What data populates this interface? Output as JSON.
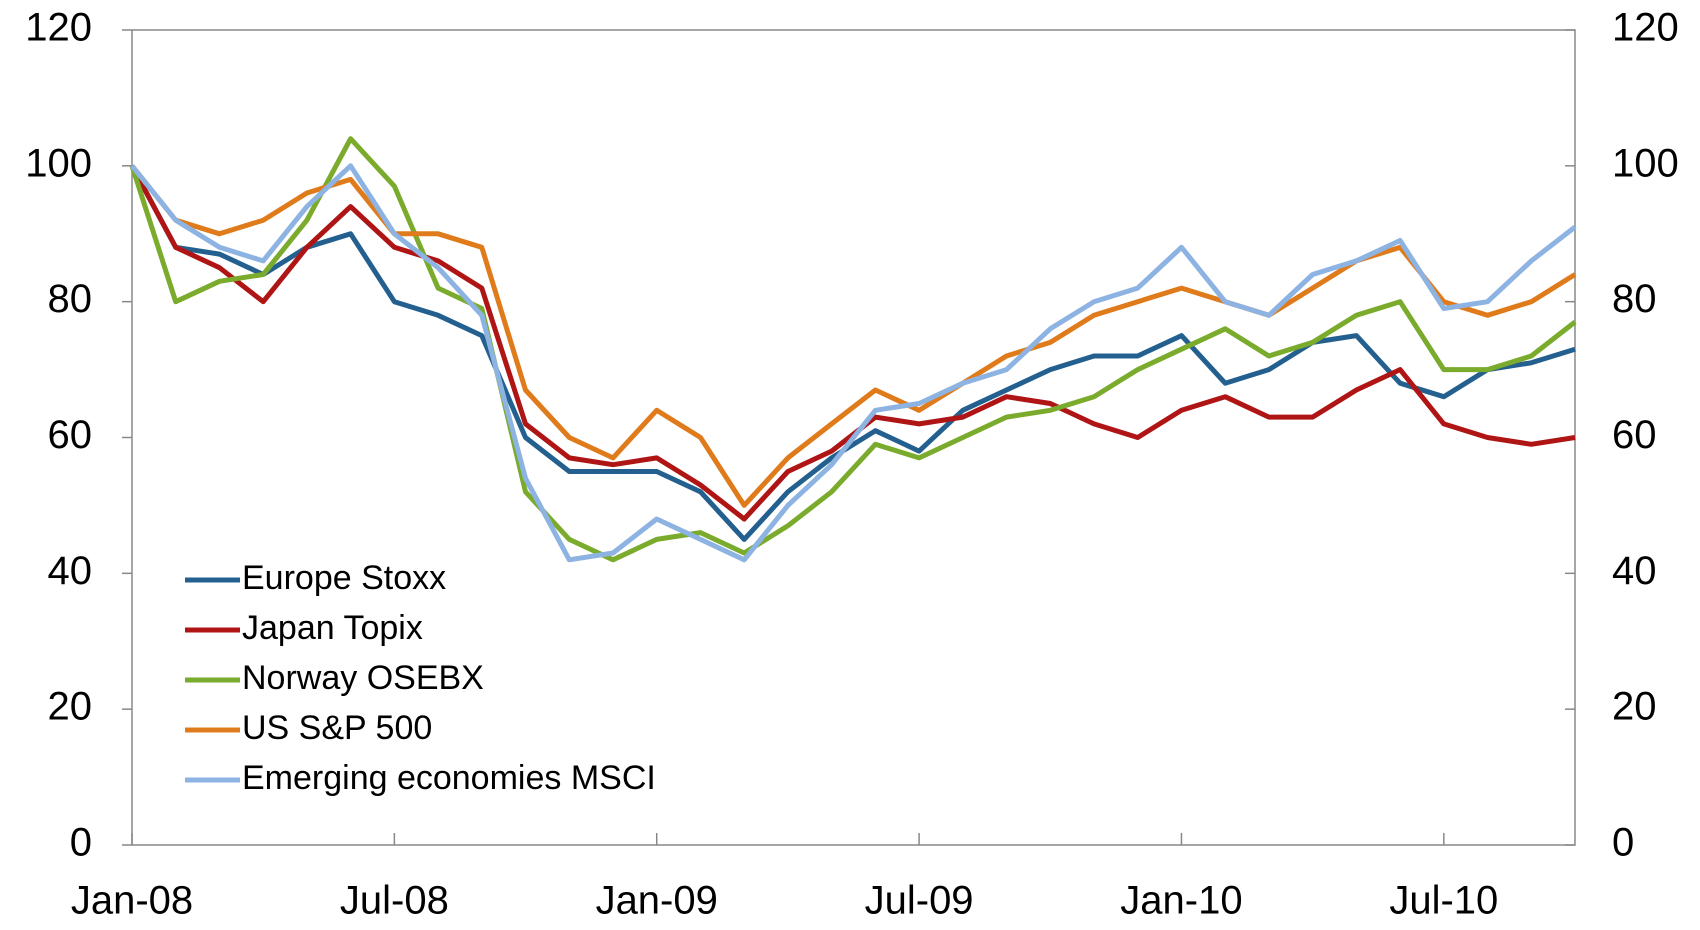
{
  "chart_data": {
    "type": "line",
    "categories": [
      "Jan-08",
      null,
      null,
      null,
      null,
      null,
      "Jul-08",
      null,
      null,
      null,
      null,
      null,
      "Jan-09",
      null,
      null,
      null,
      null,
      null,
      "Jul-09",
      null,
      null,
      null,
      null,
      null,
      "Jan-10",
      null,
      null,
      null,
      null,
      null,
      "Jul-10",
      null,
      null,
      null
    ],
    "series": [
      {
        "name": "Europe Stoxx",
        "color": "#24608f",
        "values": [
          100,
          88,
          87,
          84,
          88,
          90,
          80,
          78,
          75,
          60,
          55,
          55,
          55,
          52,
          45,
          52,
          57,
          61,
          58,
          64,
          67,
          70,
          72,
          72,
          75,
          68,
          70,
          74,
          75,
          68,
          66,
          70,
          71,
          73
        ]
      },
      {
        "name": "Japan Topix",
        "color": "#b01515",
        "values": [
          100,
          88,
          85,
          80,
          88,
          94,
          88,
          86,
          82,
          62,
          57,
          56,
          57,
          53,
          48,
          55,
          58,
          63,
          62,
          63,
          66,
          65,
          62,
          60,
          64,
          66,
          63,
          63,
          67,
          70,
          62,
          60,
          59,
          60
        ]
      },
      {
        "name": "Norway OSEBX",
        "color": "#7aab2c",
        "values": [
          100,
          80,
          83,
          84,
          92,
          104,
          97,
          82,
          79,
          52,
          45,
          42,
          45,
          46,
          43,
          47,
          52,
          59,
          57,
          60,
          63,
          64,
          66,
          70,
          73,
          76,
          72,
          74,
          78,
          80,
          70,
          70,
          72,
          77
        ]
      },
      {
        "name": "US S&P 500",
        "color": "#e07b1c",
        "values": [
          100,
          92,
          90,
          92,
          96,
          98,
          90,
          90,
          88,
          67,
          60,
          57,
          64,
          60,
          50,
          57,
          62,
          67,
          64,
          68,
          72,
          74,
          78,
          80,
          82,
          80,
          78,
          82,
          86,
          88,
          80,
          78,
          80,
          84
        ]
      },
      {
        "name": "Emerging economies MSCI",
        "color": "#8db3e2",
        "values": [
          100,
          92,
          88,
          86,
          94,
          100,
          90,
          85,
          78,
          54,
          42,
          43,
          48,
          45,
          42,
          50,
          56,
          64,
          65,
          68,
          70,
          76,
          80,
          82,
          88,
          80,
          78,
          84,
          86,
          89,
          79,
          80,
          86,
          91
        ]
      }
    ],
    "ylim": [
      0,
      120
    ],
    "yticks": [
      0,
      20,
      40,
      60,
      80,
      100,
      120
    ],
    "y2lim": [
      0,
      120
    ],
    "y2ticks": [
      0,
      20,
      40,
      60,
      80,
      100,
      120
    ],
    "grid": false
  }
}
